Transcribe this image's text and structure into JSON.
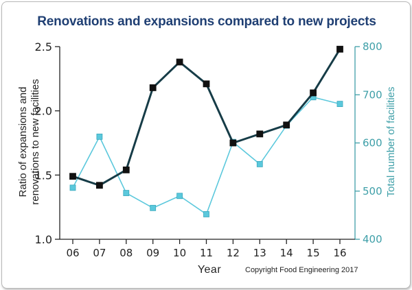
{
  "chart_data": {
    "type": "line",
    "title": "Renovations and expansions compared to new projects",
    "xlabel": "Year",
    "ylabel_left": [
      "Ratio of expansions and",
      "renovations to new facilities"
    ],
    "ylabel_right": "Total number of facilities",
    "copyright": "Copyright Food Engineering 2017",
    "categories": [
      "06",
      "07",
      "08",
      "09",
      "10",
      "11",
      "12",
      "13",
      "14",
      "15",
      "16"
    ],
    "ylim_left": [
      1.0,
      2.5
    ],
    "ylim_right": [
      400,
      800
    ],
    "yticks_left": [
      "1.0",
      "1.5",
      "2.0",
      "2.5"
    ],
    "yticks_right": [
      "400",
      "500",
      "600",
      "700",
      "800"
    ],
    "grid": false,
    "series": [
      {
        "axis": "left",
        "color": "#163c47",
        "marker_color": "#111111",
        "values": [
          1.49,
          1.42,
          1.54,
          2.18,
          2.38,
          2.21,
          1.75,
          1.82,
          1.89,
          2.14,
          2.48
        ]
      },
      {
        "axis": "right",
        "color": "#5bc8dc",
        "marker_color": "#5bc8dc",
        "values": [
          507,
          613,
          496,
          465,
          490,
          452,
          602,
          556,
          636,
          695,
          681
        ]
      }
    ]
  }
}
